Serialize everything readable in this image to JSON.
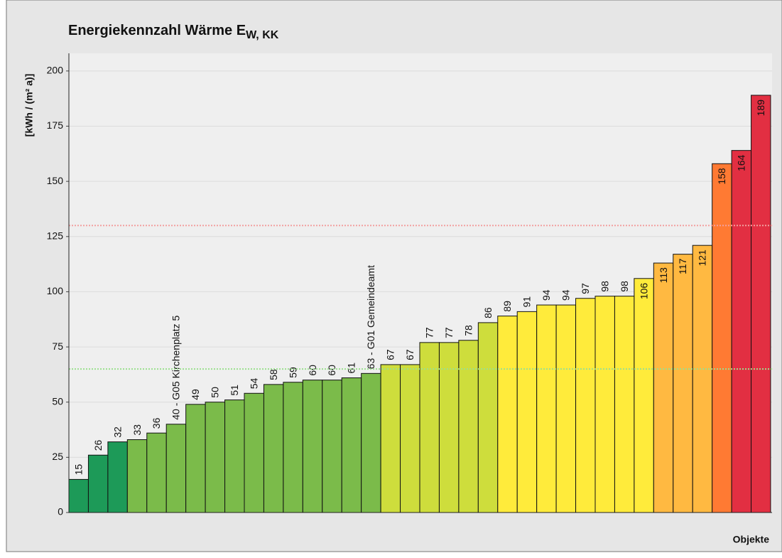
{
  "chart_data": {
    "type": "bar",
    "title": "Energiekennzahl Wärme E",
    "title_subscript": "W, KK",
    "y_label": "[kWh / (m² a)]",
    "x_label": "Objekte",
    "values": [
      15,
      26,
      32,
      33,
      36,
      40,
      49,
      50,
      51,
      54,
      58,
      59,
      60,
      60,
      61,
      63,
      67,
      67,
      77,
      77,
      78,
      86,
      89,
      91,
      94,
      94,
      97,
      98,
      98,
      106,
      113,
      117,
      121,
      158,
      164,
      189
    ],
    "value_labels": [
      "15",
      "26",
      "32",
      "33",
      "36",
      "40 - G05 Kirchenplatz 5",
      "49",
      "50",
      "51",
      "54",
      "58",
      "59",
      "60",
      "60",
      "61",
      "63 - G01 Gemeindeamt",
      "67",
      "67",
      "77",
      "77",
      "78",
      "86",
      "89",
      "91",
      "94",
      "94",
      "97",
      "98",
      "98",
      "106",
      "113",
      "117",
      "121",
      "158",
      "164",
      "189"
    ],
    "colors": [
      "#1d9a58",
      "#1d9a58",
      "#1d9a58",
      "#7bbb4a",
      "#7bbb4a",
      "#7bbb4a",
      "#7bbb4a",
      "#7bbb4a",
      "#7bbb4a",
      "#7bbb4a",
      "#7bbb4a",
      "#7bbb4a",
      "#7bbb4a",
      "#7bbb4a",
      "#7bbb4a",
      "#7bbb4a",
      "#cedd3c",
      "#cedd3c",
      "#cedd3c",
      "#cedd3c",
      "#cedd3c",
      "#cedd3c",
      "#ffeb3b",
      "#ffeb3b",
      "#ffeb3b",
      "#ffeb3b",
      "#ffeb3b",
      "#ffeb3b",
      "#ffeb3b",
      "#ffeb3b",
      "#ffb941",
      "#ffb941",
      "#ffb941",
      "#ff7a33",
      "#e22f42",
      "#e22f42"
    ],
    "reference_lines": [
      {
        "value": 65,
        "color": "#9be08f"
      },
      {
        "value": 130,
        "color": "#f2a0a0"
      }
    ],
    "ylim": [
      0,
      208
    ],
    "yticks": [
      0,
      25,
      50,
      75,
      100,
      125,
      150,
      175,
      200
    ],
    "grid": true
  }
}
